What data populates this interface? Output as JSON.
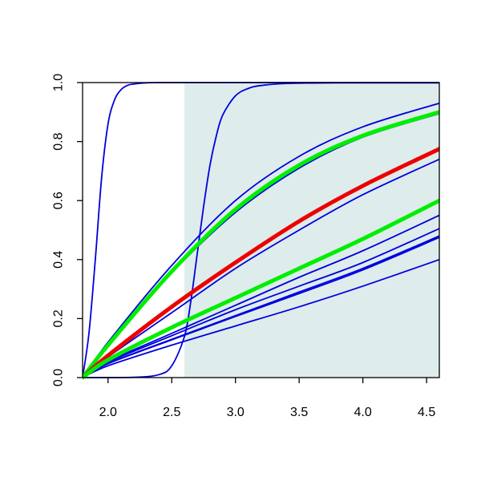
{
  "chart_data": {
    "type": "line",
    "title": "",
    "xlabel": "",
    "ylabel": "",
    "xlim": [
      1.8,
      4.6
    ],
    "ylim": [
      0.0,
      1.0
    ],
    "x_ticks": [
      2.0,
      2.5,
      3.0,
      3.5,
      4.0,
      4.5
    ],
    "x_tick_labels": [
      "2.0",
      "2.5",
      "3.0",
      "3.5",
      "4.0",
      "4.5"
    ],
    "y_ticks": [
      0.0,
      0.2,
      0.4,
      0.6,
      0.8,
      1.0
    ],
    "y_tick_labels": [
      "0.0",
      "0.2",
      "0.4",
      "0.6",
      "0.8",
      "1.0"
    ],
    "grid": false,
    "legend": "none",
    "shaded_region": {
      "x_start": 2.6,
      "x_end": 4.6,
      "color": "#deecec"
    },
    "series": [
      {
        "color": "#0000dd",
        "width": "thin",
        "x": [
          1.8,
          1.85,
          1.9,
          1.95,
          2.0,
          2.05,
          2.1,
          2.15,
          2.2,
          2.3,
          2.4,
          2.6,
          4.6
        ],
        "y": [
          0.0,
          0.15,
          0.4,
          0.68,
          0.86,
          0.94,
          0.975,
          0.99,
          0.995,
          0.999,
          1.0,
          1.0,
          1.0
        ]
      },
      {
        "color": "#0000dd",
        "width": "thin",
        "x": [
          1.8,
          2.2,
          2.4,
          2.5,
          2.6,
          2.65,
          2.7,
          2.75,
          2.8,
          2.85,
          2.9,
          3.0,
          3.1,
          3.2,
          3.4,
          3.8,
          4.6
        ],
        "y": [
          0.0,
          0.001,
          0.01,
          0.04,
          0.14,
          0.26,
          0.42,
          0.58,
          0.72,
          0.82,
          0.89,
          0.955,
          0.98,
          0.99,
          0.997,
          0.999,
          0.999
        ]
      },
      {
        "color": "#0000dd",
        "width": "thin",
        "x": [
          1.8,
          2.0,
          2.5,
          3.0,
          3.5,
          4.0,
          4.6
        ],
        "y": [
          0.0,
          0.12,
          0.38,
          0.6,
          0.75,
          0.85,
          0.93
        ]
      },
      {
        "color": "#00ee00",
        "width": "thick",
        "x": [
          1.8,
          2.0,
          2.5,
          3.0,
          3.5,
          4.0,
          4.6
        ],
        "y": [
          0.0,
          0.11,
          0.36,
          0.57,
          0.72,
          0.82,
          0.9
        ]
      },
      {
        "color": "#0000dd",
        "width": "thin",
        "x": [
          1.8,
          2.0,
          2.5,
          3.0,
          3.5,
          4.0,
          4.6
        ],
        "y": [
          0.0,
          0.11,
          0.355,
          0.56,
          0.71,
          0.815,
          0.895
        ]
      },
      {
        "color": "#ee0000",
        "width": "thick",
        "x": [
          1.8,
          2.0,
          2.5,
          3.0,
          3.5,
          4.0,
          4.6
        ],
        "y": [
          0.0,
          0.075,
          0.24,
          0.39,
          0.53,
          0.65,
          0.775
        ]
      },
      {
        "color": "#0000dd",
        "width": "thin",
        "x": [
          1.8,
          2.0,
          2.5,
          3.0,
          3.5,
          4.0,
          4.6
        ],
        "y": [
          0.0,
          0.07,
          0.22,
          0.37,
          0.5,
          0.62,
          0.74
        ]
      },
      {
        "color": "#00ee00",
        "width": "thick",
        "x": [
          1.8,
          2.0,
          2.5,
          3.0,
          3.5,
          4.0,
          4.6
        ],
        "y": [
          0.0,
          0.06,
          0.17,
          0.27,
          0.37,
          0.47,
          0.6
        ]
      },
      {
        "color": "#0000dd",
        "width": "thin",
        "x": [
          1.8,
          2.0,
          2.5,
          3.0,
          3.5,
          4.0,
          4.6
        ],
        "y": [
          0.0,
          0.055,
          0.15,
          0.245,
          0.34,
          0.43,
          0.55
        ]
      },
      {
        "color": "#0000dd",
        "width": "thin",
        "x": [
          1.8,
          2.0,
          2.5,
          3.0,
          3.5,
          4.0,
          4.6
        ],
        "y": [
          0.0,
          0.052,
          0.142,
          0.23,
          0.31,
          0.39,
          0.505
        ]
      },
      {
        "color": "#0000dd",
        "width": "thin",
        "x": [
          1.8,
          2.0,
          2.5,
          3.0,
          3.5,
          4.0,
          4.6
        ],
        "y": [
          0.0,
          0.048,
          0.13,
          0.21,
          0.29,
          0.37,
          0.48
        ]
      },
      {
        "color": "#0000dd",
        "width": "thin",
        "x": [
          1.8,
          2.0,
          2.5,
          3.0,
          3.5,
          4.0,
          4.6
        ],
        "y": [
          0.0,
          0.047,
          0.128,
          0.207,
          0.285,
          0.365,
          0.475
        ]
      },
      {
        "color": "#0000dd",
        "width": "thin",
        "x": [
          1.8,
          2.0,
          2.5,
          3.0,
          3.5,
          4.0,
          4.6
        ],
        "y": [
          0.0,
          0.04,
          0.11,
          0.175,
          0.24,
          0.31,
          0.4
        ]
      }
    ]
  }
}
